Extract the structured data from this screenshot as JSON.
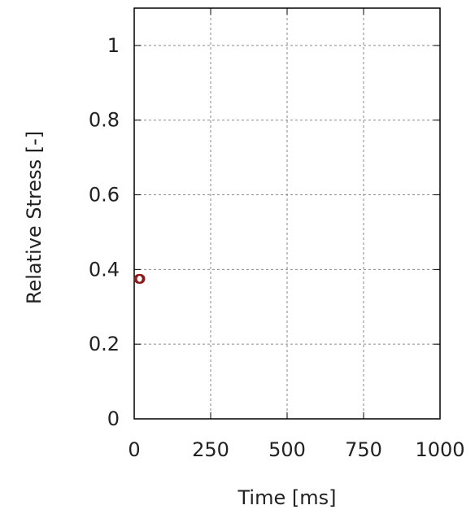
{
  "chart_data": {
    "type": "scatter",
    "title": "",
    "xlabel": "Time [ms]",
    "ylabel": "Relative Stress [-]",
    "xlim": [
      0,
      1000
    ],
    "ylim": [
      0,
      1.1
    ],
    "x_ticks": [
      0,
      250,
      500,
      750,
      1000
    ],
    "y_ticks": [
      0,
      0.2,
      0.4,
      0.6,
      0.8,
      1
    ],
    "x_tick_labels": [
      "0",
      "250",
      "500",
      "750",
      "1000"
    ],
    "y_tick_labels": [
      "0",
      "0.2",
      "0.4",
      "0.6",
      "0.8",
      "1"
    ],
    "grid": true,
    "series": [
      {
        "color": "#8b1a1a",
        "points": [
          {
            "x": 15,
            "y": 0.375
          },
          {
            "x": 20,
            "y": 0.375
          }
        ]
      }
    ]
  }
}
